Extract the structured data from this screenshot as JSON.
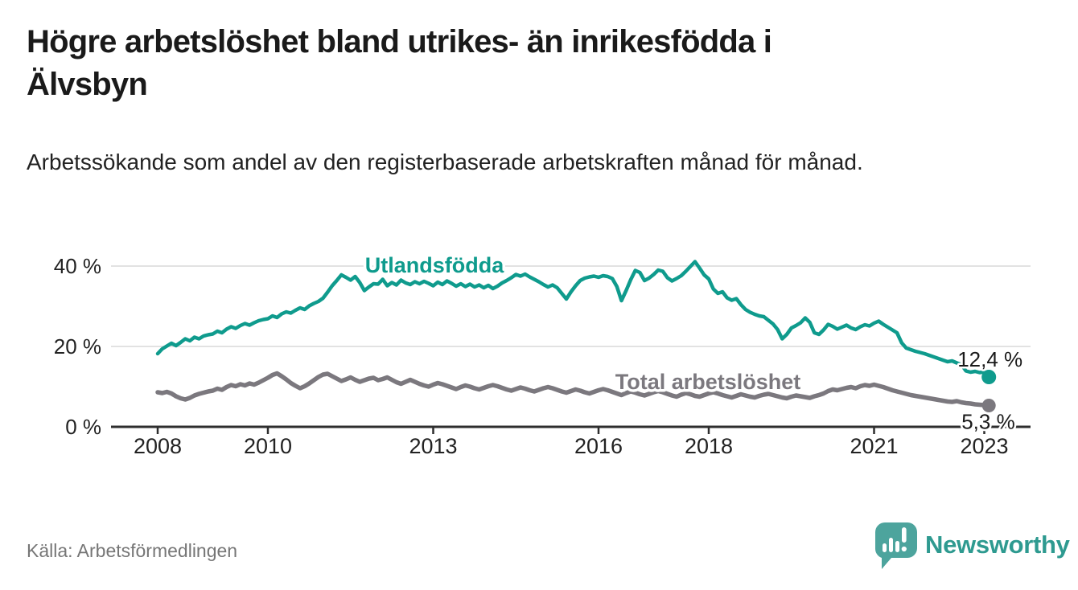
{
  "header": {
    "title_line1": "Högre arbetslöshet bland utrikes- än inrikesfödda i",
    "title_line2": "Älvsbyn",
    "subtitle": "Arbetssökande som andel av den registerbaserade arbetskraften månad för månad."
  },
  "footer": {
    "source": "Källa: Arbetsförmedlingen",
    "brand": "Newsworthy",
    "brand_color": "#2e9a90",
    "logo_bubble_color": "#4da49d",
    "logo_icon": "bar-chart-exclamation-speech-bubble"
  },
  "chart_data": {
    "type": "line",
    "title": "Högre arbetslöshet bland utrikes- än inrikesfödda i Älvsbyn",
    "subtitle": "Arbetssökande som andel av den registerbaserade arbetskraften månad för månad.",
    "x_start_year": 2008,
    "x_frequency": "monthly",
    "x_end": "2023-02",
    "x_ticks": [
      2008,
      2010,
      2013,
      2016,
      2018,
      2021,
      2023
    ],
    "ylim": [
      0,
      44
    ],
    "y_ticks": [
      {
        "value": 0,
        "label": "0 %"
      },
      {
        "value": 20,
        "label": "20 %"
      },
      {
        "value": 40,
        "label": "40 %"
      }
    ],
    "grid": "horizontal-only",
    "legend_position": "inline-labels",
    "axis_color": "#2e2e2e",
    "grid_color": "#d9d9d9",
    "tick_label_color": "#222222",
    "annotation_color": "#1a1a1a",
    "series": [
      {
        "name": "Utlandsfödda",
        "color": "#0f9b8d",
        "end_label": "12,4 %",
        "values": [
          18.2,
          19.4,
          20.1,
          20.8,
          20.2,
          21.0,
          21.9,
          21.4,
          22.3,
          21.9,
          22.6,
          22.9,
          23.1,
          23.8,
          23.4,
          24.3,
          24.9,
          24.5,
          25.2,
          25.7,
          25.3,
          25.9,
          26.4,
          26.7,
          26.9,
          27.6,
          27.2,
          28.1,
          28.6,
          28.3,
          29.0,
          29.6,
          29.2,
          30.1,
          30.7,
          31.2,
          32.0,
          33.5,
          35.1,
          36.4,
          37.8,
          37.2,
          36.5,
          37.4,
          35.9,
          33.9,
          34.8,
          35.6,
          35.5,
          36.7,
          35.1,
          35.9,
          35.3,
          36.5,
          35.8,
          35.4,
          36.1,
          35.6,
          36.2,
          35.7,
          35.1,
          36.0,
          35.4,
          36.3,
          35.7,
          35.0,
          35.6,
          34.9,
          35.5,
          34.8,
          35.3,
          34.6,
          35.2,
          34.4,
          35.0,
          35.8,
          36.4,
          37.1,
          37.9,
          37.5,
          38.0,
          37.3,
          36.7,
          36.1,
          35.4,
          34.8,
          35.3,
          34.6,
          33.2,
          31.8,
          33.6,
          35.1,
          36.4,
          37.0,
          37.3,
          37.5,
          37.2,
          37.6,
          37.4,
          36.9,
          34.9,
          31.4,
          33.9,
          36.6,
          38.9,
          38.4,
          36.4,
          37.0,
          37.9,
          39.0,
          38.7,
          37.1,
          36.3,
          36.9,
          37.6,
          38.7,
          39.9,
          41.1,
          39.5,
          37.8,
          36.8,
          34.3,
          33.2,
          33.6,
          32.1,
          31.5,
          31.9,
          30.4,
          29.2,
          28.5,
          28.0,
          27.6,
          27.4,
          26.5,
          25.6,
          24.2,
          21.9,
          23.0,
          24.6,
          25.2,
          25.9,
          27.1,
          26.0,
          23.4,
          23.0,
          24.1,
          25.5,
          25.0,
          24.3,
          24.8,
          25.3,
          24.6,
          24.2,
          24.9,
          25.4,
          25.1,
          25.8,
          26.3,
          25.5,
          24.8,
          24.1,
          23.4,
          20.9,
          19.6,
          19.2,
          18.8,
          18.5,
          18.2,
          17.8,
          17.4,
          17.0,
          16.6,
          16.2,
          16.4,
          15.9,
          15.5,
          13.9,
          13.6,
          13.8,
          13.5,
          13.7,
          12.4
        ]
      },
      {
        "name": "Total arbetslöshet",
        "color": "#7b787e",
        "end_label": "5,3 %",
        "values": [
          8.6,
          8.4,
          8.7,
          8.3,
          7.6,
          7.1,
          6.8,
          7.2,
          7.8,
          8.2,
          8.5,
          8.8,
          9.0,
          9.5,
          9.2,
          9.9,
          10.4,
          10.1,
          10.6,
          10.3,
          10.8,
          10.5,
          11.0,
          11.6,
          12.2,
          12.9,
          13.3,
          12.6,
          11.8,
          10.9,
          10.2,
          9.6,
          10.1,
          10.8,
          11.6,
          12.4,
          13.0,
          13.2,
          12.6,
          12.0,
          11.4,
          11.8,
          12.3,
          11.7,
          11.2,
          11.6,
          12.0,
          12.2,
          11.6,
          11.9,
          12.3,
          11.7,
          11.1,
          10.7,
          11.2,
          11.7,
          11.2,
          10.7,
          10.3,
          10.0,
          10.5,
          10.9,
          10.6,
          10.2,
          9.8,
          9.4,
          9.9,
          10.3,
          10.0,
          9.6,
          9.3,
          9.7,
          10.1,
          10.4,
          10.1,
          9.7,
          9.3,
          9.0,
          9.4,
          9.8,
          9.5,
          9.1,
          8.8,
          9.2,
          9.6,
          9.9,
          9.6,
          9.2,
          8.8,
          8.5,
          8.9,
          9.3,
          9.0,
          8.6,
          8.3,
          8.7,
          9.1,
          9.4,
          9.1,
          8.7,
          8.3,
          7.9,
          8.4,
          8.8,
          8.5,
          8.1,
          7.8,
          8.2,
          8.6,
          8.9,
          8.6,
          8.2,
          7.8,
          7.5,
          8.0,
          8.4,
          8.1,
          7.7,
          7.5,
          7.9,
          8.3,
          8.6,
          8.3,
          7.9,
          7.6,
          7.3,
          7.7,
          8.1,
          7.8,
          7.5,
          7.3,
          7.7,
          8.0,
          8.2,
          7.9,
          7.6,
          7.3,
          7.1,
          7.5,
          7.8,
          7.6,
          7.4,
          7.2,
          7.6,
          7.9,
          8.3,
          8.9,
          9.3,
          9.1,
          9.4,
          9.7,
          9.9,
          9.6,
          10.1,
          10.4,
          10.2,
          10.5,
          10.2,
          9.9,
          9.5,
          9.1,
          8.8,
          8.5,
          8.2,
          7.9,
          7.7,
          7.5,
          7.3,
          7.1,
          6.9,
          6.7,
          6.5,
          6.3,
          6.2,
          6.4,
          6.1,
          5.9,
          5.8,
          5.6,
          5.5,
          5.4,
          5.3
        ]
      }
    ]
  }
}
